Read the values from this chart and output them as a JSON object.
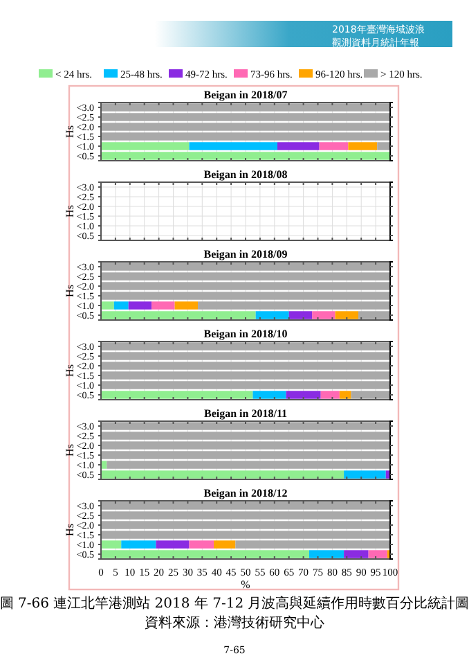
{
  "chart_data": [
    {
      "type": "bar",
      "orientation": "horizontal",
      "stacked": true,
      "title": "Beigan in 2018/07",
      "ylabel": "Hs",
      "categories": [
        "<3.0",
        "<2.5",
        "<2.0",
        "<1.5",
        "<1.0",
        "<0.5"
      ],
      "xlim": [
        0,
        100
      ],
      "xticks": [
        0,
        5,
        10,
        15,
        20,
        25,
        30,
        35,
        40,
        45,
        50,
        55,
        60,
        65,
        70,
        75,
        80,
        85,
        90,
        95,
        100
      ],
      "tick_labels": "y",
      "grid": true,
      "legend": "top",
      "annotations": [
        "2018年臺灣海域波浪",
        "觀測資料月統計年報"
      ],
      "series": [
        {
          "name": "< 24 hrs.",
          "color": "#90ee90",
          "values": [
            0,
            0,
            0,
            0,
            30.5,
            100
          ]
        },
        {
          "name": "25-48 hrs.",
          "color": "#00bfff",
          "values": [
            0,
            0,
            0,
            0,
            30.5,
            0
          ]
        },
        {
          "name": "49-72 hrs.",
          "color": "#8a2be2",
          "values": [
            0,
            0,
            0,
            0,
            14.5,
            0
          ]
        },
        {
          "name": "73-96 hrs.",
          "color": "#ff69b4",
          "values": [
            0,
            0,
            0,
            0,
            10,
            0
          ]
        },
        {
          "name": "96-120 hrs.",
          "color": "#ffa500",
          "values": [
            0,
            0,
            0,
            0,
            10,
            0
          ]
        },
        {
          "name": "> 120 hrs.",
          "color": "#a9a9a9",
          "values": [
            100,
            100,
            100,
            100,
            4.5,
            0
          ]
        }
      ]
    },
    {
      "type": "bar",
      "orientation": "horizontal",
      "title": "Beigan in 2018/08",
      "ylabel": "Hs",
      "categories": [
        "<3.0",
        "<2.5",
        "<2.0",
        "<1.5",
        "<1.0",
        "<0.5"
      ],
      "xlim": [
        0,
        100
      ],
      "xticks": [
        0,
        5,
        10,
        15,
        20,
        25,
        30,
        35,
        40,
        45,
        50,
        55,
        60,
        65,
        70,
        75,
        80,
        85,
        90,
        95,
        100
      ],
      "tick_labels": "y",
      "grid": true,
      "values": [
        null,
        null,
        null,
        null,
        null,
        null
      ]
    },
    {
      "type": "bar",
      "orientation": "horizontal",
      "stacked": true,
      "title": "Beigan in 2018/09",
      "ylabel": "Hs",
      "categories": [
        "<3.0",
        "<2.5",
        "<2.0",
        "<1.5",
        "<1.0",
        "<0.5"
      ],
      "xlim": [
        0,
        100
      ],
      "xticks": [
        0,
        5,
        10,
        15,
        20,
        25,
        30,
        35,
        40,
        45,
        50,
        55,
        60,
        65,
        70,
        75,
        80,
        85,
        90,
        95,
        100
      ],
      "tick_labels": "y",
      "grid": true,
      "series": [
        {
          "color": "#90ee90",
          "values": [
            0,
            0,
            0,
            0,
            4.5,
            53.5
          ]
        },
        {
          "color": "#00bfff",
          "values": [
            0,
            0,
            0,
            0,
            5,
            11.5
          ]
        },
        {
          "color": "#8a2be2",
          "values": [
            0,
            0,
            0,
            0,
            8,
            8
          ]
        },
        {
          "color": "#ff69b4",
          "values": [
            0,
            0,
            0,
            0,
            8,
            8
          ]
        },
        {
          "color": "#ffa500",
          "values": [
            0,
            0,
            0,
            0,
            8,
            8
          ]
        },
        {
          "color": "#a9a9a9",
          "values": [
            100,
            100,
            100,
            100,
            66.5,
            11
          ]
        }
      ]
    },
    {
      "type": "bar",
      "orientation": "horizontal",
      "stacked": true,
      "title": "Beigan in 2018/10",
      "ylabel": "Hs",
      "categories": [
        "<3.0",
        "<2.5",
        "<2.0",
        "<1.5",
        "<1.0",
        "<0.5"
      ],
      "xlim": [
        0,
        100
      ],
      "xticks": [
        0,
        5,
        10,
        15,
        20,
        25,
        30,
        35,
        40,
        45,
        50,
        55,
        60,
        65,
        70,
        75,
        80,
        85,
        90,
        95,
        100
      ],
      "tick_labels": "y",
      "grid": true,
      "series": [
        {
          "color": "#90ee90",
          "values": [
            0,
            0,
            0,
            0,
            0,
            52.5
          ]
        },
        {
          "color": "#00bfff",
          "values": [
            0,
            0,
            0,
            0,
            0,
            11.5
          ]
        },
        {
          "color": "#8a2be2",
          "values": [
            0,
            0,
            0,
            0,
            0,
            12
          ]
        },
        {
          "color": "#ff69b4",
          "values": [
            0,
            0,
            0,
            0,
            0,
            6.5
          ]
        },
        {
          "color": "#ffa500",
          "values": [
            0,
            0,
            0,
            0,
            0,
            4
          ]
        },
        {
          "color": "#a9a9a9",
          "values": [
            100,
            100,
            100,
            100,
            100,
            13.5
          ]
        }
      ]
    },
    {
      "type": "bar",
      "orientation": "horizontal",
      "stacked": true,
      "title": "Beigan in 2018/11",
      "ylabel": "Hs",
      "categories": [
        "<3.0",
        "<2.5",
        "<2.0",
        "<1.5",
        "<1.0",
        "<0.5"
      ],
      "xlim": [
        0,
        100
      ],
      "xticks": [
        0,
        5,
        10,
        15,
        20,
        25,
        30,
        35,
        40,
        45,
        50,
        55,
        60,
        65,
        70,
        75,
        80,
        85,
        90,
        95,
        100
      ],
      "tick_labels": "y",
      "grid": true,
      "series": [
        {
          "color": "#90ee90",
          "values": [
            0,
            0,
            0,
            0,
            2,
            84
          ]
        },
        {
          "color": "#00bfff",
          "values": [
            0,
            0,
            0,
            0,
            0,
            14.5
          ]
        },
        {
          "color": "#8a2be2",
          "values": [
            0,
            0,
            0,
            0,
            0,
            1.5
          ]
        },
        {
          "color": "#ff69b4",
          "values": [
            0,
            0,
            0,
            0,
            0,
            0
          ]
        },
        {
          "color": "#ffa500",
          "values": [
            0,
            0,
            0,
            0,
            0,
            0
          ]
        },
        {
          "color": "#a9a9a9",
          "values": [
            100,
            100,
            100,
            100,
            98,
            0
          ]
        }
      ]
    },
    {
      "type": "bar",
      "orientation": "horizontal",
      "stacked": true,
      "title": "Beigan in 2018/12",
      "ylabel": "Hs",
      "xlabel": "%",
      "categories": [
        "<3.0",
        "<2.5",
        "<2.0",
        "<1.5",
        "<1.0",
        "<0.5"
      ],
      "xlim": [
        0,
        100
      ],
      "xticks": [
        0,
        5,
        10,
        15,
        20,
        25,
        30,
        35,
        40,
        45,
        50,
        55,
        60,
        65,
        70,
        75,
        80,
        85,
        90,
        95,
        100
      ],
      "grid": true,
      "annotations": [
        "圖 7-66 連江北竿港測站 2018 年 7-12 月波高與延續作用時數百分比統計圖",
        "資料來源：港灣技術研究中心",
        "7-65"
      ],
      "series": [
        {
          "color": "#90ee90",
          "values": [
            0,
            0,
            0,
            0,
            7,
            72
          ]
        },
        {
          "color": "#00bfff",
          "values": [
            0,
            0,
            0,
            0,
            12,
            12
          ]
        },
        {
          "color": "#8a2be2",
          "values": [
            0,
            0,
            0,
            0,
            11.5,
            8.5
          ]
        },
        {
          "color": "#ff69b4",
          "values": [
            0,
            0,
            0,
            0,
            8.5,
            6.5
          ]
        },
        {
          "color": "#ffa500",
          "values": [
            0,
            0,
            0,
            0,
            7.5,
            1
          ]
        },
        {
          "color": "#a9a9a9",
          "values": [
            100,
            100,
            100,
            100,
            53.5,
            0
          ]
        }
      ]
    }
  ]
}
